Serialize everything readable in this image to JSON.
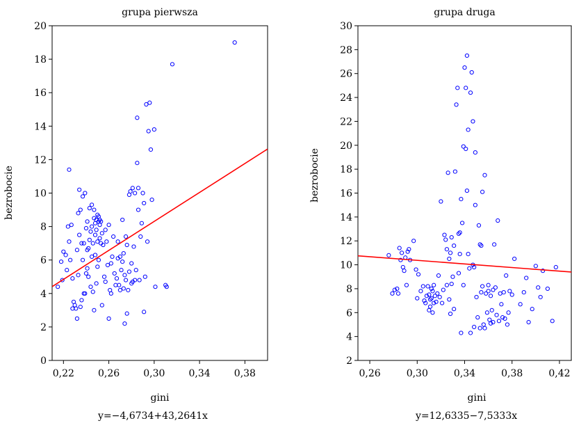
{
  "chart_data": [
    {
      "type": "scatter",
      "title": "grupa pierwsza",
      "xlabel": "gini",
      "ylabel": "bezrobocie",
      "xlim": [
        0.21,
        0.4
      ],
      "ylim": [
        0,
        20
      ],
      "xticks": [
        0.22,
        0.26,
        0.3,
        0.34,
        0.38
      ],
      "xtick_labels": [
        "0,22",
        "0,26",
        "0,30",
        "0,34",
        "0,38"
      ],
      "yticks": [
        0,
        2,
        4,
        6,
        8,
        10,
        12,
        14,
        16,
        18,
        20
      ],
      "ytick_labels": [
        "0",
        "2",
        "4",
        "6",
        "8",
        "10",
        "12",
        "14",
        "16",
        "18",
        "20"
      ],
      "grid": false,
      "marker_color": "#0000ff",
      "fit_color": "#ff0000",
      "fit": {
        "intercept": -4.6734,
        "slope": 43.2641
      },
      "equation": "y=−4,6734+43,2641x",
      "points": [
        [
          0.215,
          4.4
        ],
        [
          0.218,
          5.9
        ],
        [
          0.219,
          4.8
        ],
        [
          0.22,
          6.5
        ],
        [
          0.222,
          6.3
        ],
        [
          0.223,
          5.4
        ],
        [
          0.224,
          8.0
        ],
        [
          0.225,
          11.4
        ],
        [
          0.225,
          7.1
        ],
        [
          0.226,
          6.0
        ],
        [
          0.227,
          8.1
        ],
        [
          0.228,
          3.1
        ],
        [
          0.228,
          4.9
        ],
        [
          0.229,
          3.5
        ],
        [
          0.23,
          3.3
        ],
        [
          0.231,
          3.1
        ],
        [
          0.232,
          2.5
        ],
        [
          0.232,
          6.6
        ],
        [
          0.233,
          5.1
        ],
        [
          0.233,
          8.8
        ],
        [
          0.234,
          10.2
        ],
        [
          0.234,
          7.5
        ],
        [
          0.235,
          3.2
        ],
        [
          0.235,
          9.0
        ],
        [
          0.236,
          3.6
        ],
        [
          0.236,
          7.0
        ],
        [
          0.237,
          6.0
        ],
        [
          0.237,
          9.8
        ],
        [
          0.238,
          4.0
        ],
        [
          0.238,
          7.0
        ],
        [
          0.239,
          4.0
        ],
        [
          0.239,
          10.0
        ],
        [
          0.24,
          5.2
        ],
        [
          0.24,
          7.9
        ],
        [
          0.241,
          5.5
        ],
        [
          0.241,
          6.6
        ],
        [
          0.241,
          8.3
        ],
        [
          0.242,
          5.0
        ],
        [
          0.242,
          6.7
        ],
        [
          0.243,
          7.2
        ],
        [
          0.243,
          9.1
        ],
        [
          0.244,
          4.4
        ],
        [
          0.244,
          7.7
        ],
        [
          0.245,
          9.3
        ],
        [
          0.245,
          6.2
        ],
        [
          0.245,
          8.0
        ],
        [
          0.246,
          4.1
        ],
        [
          0.246,
          7.0
        ],
        [
          0.247,
          3.0
        ],
        [
          0.247,
          9.0
        ],
        [
          0.247,
          8.5
        ],
        [
          0.248,
          6.3
        ],
        [
          0.248,
          7.5
        ],
        [
          0.248,
          8.2
        ],
        [
          0.249,
          4.6
        ],
        [
          0.249,
          8.4
        ],
        [
          0.249,
          7.8
        ],
        [
          0.25,
          5.6
        ],
        [
          0.25,
          8.7
        ],
        [
          0.25,
          7.1
        ],
        [
          0.251,
          8.3
        ],
        [
          0.251,
          6.0
        ],
        [
          0.251,
          8.6
        ],
        [
          0.252,
          8.1
        ],
        [
          0.252,
          7.3
        ],
        [
          0.252,
          8.4
        ],
        [
          0.253,
          7.0
        ],
        [
          0.253,
          8.3
        ],
        [
          0.254,
          3.3
        ],
        [
          0.254,
          7.6
        ],
        [
          0.255,
          6.9
        ],
        [
          0.256,
          5.0
        ],
        [
          0.257,
          4.7
        ],
        [
          0.257,
          7.8
        ],
        [
          0.258,
          7.1
        ],
        [
          0.259,
          5.7
        ],
        [
          0.26,
          2.5
        ],
        [
          0.26,
          8.1
        ],
        [
          0.261,
          4.2
        ],
        [
          0.262,
          4.0
        ],
        [
          0.262,
          5.8
        ],
        [
          0.263,
          6.2
        ],
        [
          0.264,
          7.4
        ],
        [
          0.265,
          5.2
        ],
        [
          0.266,
          4.5
        ],
        [
          0.267,
          4.9
        ],
        [
          0.268,
          6.1
        ],
        [
          0.268,
          7.1
        ],
        [
          0.269,
          4.5
        ],
        [
          0.27,
          6.2
        ],
        [
          0.27,
          4.2
        ],
        [
          0.271,
          5.4
        ],
        [
          0.272,
          5.9
        ],
        [
          0.272,
          8.4
        ],
        [
          0.273,
          4.3
        ],
        [
          0.273,
          6.4
        ],
        [
          0.274,
          2.2
        ],
        [
          0.274,
          5.1
        ],
        [
          0.275,
          7.4
        ],
        [
          0.275,
          4.8
        ],
        [
          0.276,
          6.9
        ],
        [
          0.276,
          2.8
        ],
        [
          0.277,
          4.2
        ],
        [
          0.278,
          9.9
        ],
        [
          0.278,
          5.3
        ],
        [
          0.279,
          10.1
        ],
        [
          0.28,
          4.6
        ],
        [
          0.28,
          5.8
        ],
        [
          0.281,
          4.7
        ],
        [
          0.281,
          10.3
        ],
        [
          0.282,
          6.8
        ],
        [
          0.283,
          4.8
        ],
        [
          0.283,
          10.0
        ],
        [
          0.284,
          5.4
        ],
        [
          0.285,
          14.5
        ],
        [
          0.285,
          11.8
        ],
        [
          0.286,
          10.3
        ],
        [
          0.286,
          9.0
        ],
        [
          0.287,
          4.8
        ],
        [
          0.288,
          7.4
        ],
        [
          0.289,
          8.2
        ],
        [
          0.29,
          10.0
        ],
        [
          0.291,
          9.4
        ],
        [
          0.291,
          2.9
        ],
        [
          0.292,
          5.0
        ],
        [
          0.293,
          15.3
        ],
        [
          0.294,
          7.1
        ],
        [
          0.295,
          13.7
        ],
        [
          0.296,
          15.4
        ],
        [
          0.297,
          12.6
        ],
        [
          0.298,
          9.6
        ],
        [
          0.3,
          13.8
        ],
        [
          0.301,
          4.4
        ],
        [
          0.31,
          4.5
        ],
        [
          0.311,
          4.4
        ],
        [
          0.316,
          17.7
        ],
        [
          0.371,
          19.0
        ]
      ]
    },
    {
      "type": "scatter",
      "title": "grupa druga",
      "xlabel": "gini",
      "ylabel": "bezrobocie",
      "xlim": [
        0.25,
        0.43
      ],
      "ylim": [
        2,
        30
      ],
      "xticks": [
        0.26,
        0.3,
        0.34,
        0.38,
        0.42
      ],
      "xtick_labels": [
        "0,26",
        "0,30",
        "0,34",
        "0,38",
        "0,42"
      ],
      "yticks": [
        2,
        4,
        6,
        8,
        10,
        12,
        14,
        16,
        18,
        20,
        22,
        24,
        26,
        28,
        30
      ],
      "ytick_labels": [
        "2",
        "4",
        "6",
        "8",
        "10",
        "12",
        "14",
        "16",
        "18",
        "20",
        "22",
        "24",
        "26",
        "28",
        "30"
      ],
      "grid": false,
      "marker_color": "#0000ff",
      "fit_color": "#ff0000",
      "fit": {
        "intercept": 12.6335,
        "slope": -7.5333
      },
      "equation": "y=12,6335−7,5333x",
      "points": [
        [
          0.276,
          10.8
        ],
        [
          0.279,
          7.6
        ],
        [
          0.281,
          7.9
        ],
        [
          0.283,
          8.0
        ],
        [
          0.284,
          7.6
        ],
        [
          0.285,
          11.4
        ],
        [
          0.286,
          10.4
        ],
        [
          0.287,
          11.0
        ],
        [
          0.288,
          9.8
        ],
        [
          0.289,
          9.5
        ],
        [
          0.29,
          10.6
        ],
        [
          0.291,
          8.3
        ],
        [
          0.292,
          11.1
        ],
        [
          0.293,
          11.3
        ],
        [
          0.294,
          10.4
        ],
        [
          0.297,
          12.0
        ],
        [
          0.299,
          9.6
        ],
        [
          0.3,
          7.2
        ],
        [
          0.301,
          9.2
        ],
        [
          0.303,
          7.8
        ],
        [
          0.305,
          8.2
        ],
        [
          0.306,
          7.0
        ],
        [
          0.307,
          6.8
        ],
        [
          0.308,
          7.4
        ],
        [
          0.309,
          8.2
        ],
        [
          0.31,
          7.5
        ],
        [
          0.31,
          6.2
        ],
        [
          0.311,
          7.1
        ],
        [
          0.311,
          6.5
        ],
        [
          0.312,
          8.0
        ],
        [
          0.312,
          7.2
        ],
        [
          0.313,
          6.0
        ],
        [
          0.313,
          7.8
        ],
        [
          0.314,
          6.8
        ],
        [
          0.314,
          8.3
        ],
        [
          0.315,
          7.4
        ],
        [
          0.316,
          6.9
        ],
        [
          0.317,
          7.6
        ],
        [
          0.318,
          9.1
        ],
        [
          0.319,
          7.3
        ],
        [
          0.32,
          15.3
        ],
        [
          0.321,
          6.8
        ],
        [
          0.322,
          7.9
        ],
        [
          0.323,
          12.5
        ],
        [
          0.324,
          12.1
        ],
        [
          0.325,
          11.3
        ],
        [
          0.325,
          8.3
        ],
        [
          0.326,
          17.7
        ],
        [
          0.327,
          7.1
        ],
        [
          0.327,
          10.5
        ],
        [
          0.328,
          5.9
        ],
        [
          0.328,
          11.0
        ],
        [
          0.329,
          12.3
        ],
        [
          0.329,
          8.4
        ],
        [
          0.33,
          9.0
        ],
        [
          0.331,
          11.6
        ],
        [
          0.331,
          6.3
        ],
        [
          0.332,
          17.8
        ],
        [
          0.333,
          23.4
        ],
        [
          0.334,
          24.8
        ],
        [
          0.335,
          12.6
        ],
        [
          0.335,
          9.3
        ],
        [
          0.336,
          12.7
        ],
        [
          0.336,
          10.9
        ],
        [
          0.337,
          15.5
        ],
        [
          0.337,
          4.3
        ],
        [
          0.338,
          13.5
        ],
        [
          0.339,
          19.9
        ],
        [
          0.339,
          8.3
        ],
        [
          0.34,
          26.5
        ],
        [
          0.341,
          19.7
        ],
        [
          0.341,
          24.8
        ],
        [
          0.342,
          16.2
        ],
        [
          0.342,
          27.5
        ],
        [
          0.343,
          21.3
        ],
        [
          0.343,
          10.9
        ],
        [
          0.344,
          9.7
        ],
        [
          0.345,
          24.4
        ],
        [
          0.345,
          4.3
        ],
        [
          0.346,
          26.1
        ],
        [
          0.347,
          22.0
        ],
        [
          0.347,
          10.0
        ],
        [
          0.348,
          9.8
        ],
        [
          0.348,
          4.8
        ],
        [
          0.349,
          15.0
        ],
        [
          0.349,
          19.4
        ],
        [
          0.35,
          7.3
        ],
        [
          0.351,
          5.6
        ],
        [
          0.352,
          13.3
        ],
        [
          0.353,
          4.7
        ],
        [
          0.353,
          11.7
        ],
        [
          0.354,
          11.6
        ],
        [
          0.354,
          7.7
        ],
        [
          0.355,
          16.1
        ],
        [
          0.355,
          8.2
        ],
        [
          0.356,
          5.0
        ],
        [
          0.357,
          17.5
        ],
        [
          0.357,
          4.7
        ],
        [
          0.358,
          7.6
        ],
        [
          0.359,
          6.0
        ],
        [
          0.36,
          7.8
        ],
        [
          0.36,
          8.3
        ],
        [
          0.361,
          5.4
        ],
        [
          0.362,
          5.1
        ],
        [
          0.362,
          7.4
        ],
        [
          0.363,
          6.2
        ],
        [
          0.364,
          7.9
        ],
        [
          0.364,
          5.2
        ],
        [
          0.365,
          11.7
        ],
        [
          0.366,
          8.1
        ],
        [
          0.367,
          5.8
        ],
        [
          0.368,
          13.7
        ],
        [
          0.369,
          5.3
        ],
        [
          0.37,
          7.6
        ],
        [
          0.371,
          6.7
        ],
        [
          0.372,
          5.6
        ],
        [
          0.373,
          7.7
        ],
        [
          0.374,
          5.5
        ],
        [
          0.375,
          9.1
        ],
        [
          0.376,
          5.0
        ],
        [
          0.377,
          6.0
        ],
        [
          0.378,
          7.8
        ],
        [
          0.38,
          7.5
        ],
        [
          0.382,
          10.5
        ],
        [
          0.387,
          6.7
        ],
        [
          0.39,
          7.7
        ],
        [
          0.392,
          8.9
        ],
        [
          0.394,
          5.2
        ],
        [
          0.397,
          6.3
        ],
        [
          0.4,
          9.9
        ],
        [
          0.402,
          8.1
        ],
        [
          0.404,
          7.3
        ],
        [
          0.406,
          9.5
        ],
        [
          0.41,
          8.0
        ],
        [
          0.414,
          5.3
        ],
        [
          0.417,
          9.8
        ]
      ]
    }
  ]
}
